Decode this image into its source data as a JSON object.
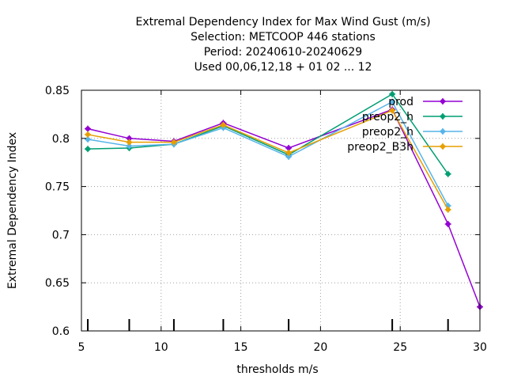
{
  "chart_data": {
    "type": "line",
    "title": [
      "Extremal Dependency Index  for Max Wind Gust (m/s)",
      "Selection: METCOOP    446 stations",
      "Period: 20240610-20240629",
      "Used  00,06,12,18 + 01 02 ... 12"
    ],
    "xlabel": "thresholds m/s",
    "ylabel": "Extremal Dependency Index",
    "xlim": [
      5,
      30
    ],
    "ylim": [
      0.6,
      0.85
    ],
    "xticks": [
      "5",
      "10",
      "15",
      "20",
      "25",
      "30"
    ],
    "yticks": [
      "0.6",
      "0.65",
      "0.7",
      "0.75",
      "0.8",
      "0.85"
    ],
    "grid": true,
    "legend_position": "top-right",
    "threshold_marks": [
      5.4,
      8,
      10.8,
      13.9,
      18,
      24.5,
      28
    ],
    "series": [
      {
        "name": "prod",
        "color": "#9400d3",
        "x": [
          5.4,
          8,
          10.8,
          13.9,
          18,
          24.5,
          28,
          30
        ],
        "y": [
          0.81,
          0.8,
          0.797,
          0.816,
          0.79,
          0.83,
          0.711,
          0.625
        ]
      },
      {
        "name": "preop2_h",
        "color": "#009e73",
        "x": [
          5.4,
          8,
          10.8,
          13.9,
          18,
          24.5,
          28
        ],
        "y": [
          0.789,
          0.79,
          0.794,
          0.813,
          0.783,
          0.846,
          0.763
        ]
      },
      {
        "name": "preop2_h",
        "color": "#56b4e9",
        "x": [
          5.4,
          8,
          10.8,
          13.9,
          18,
          24.5,
          28
        ],
        "y": [
          0.799,
          0.792,
          0.794,
          0.811,
          0.781,
          0.838,
          0.73
        ]
      },
      {
        "name": "preop2_B3h",
        "color": "#e69f00",
        "x": [
          5.4,
          8,
          10.8,
          13.9,
          18,
          24.5,
          28
        ],
        "y": [
          0.804,
          0.796,
          0.796,
          0.814,
          0.785,
          0.829,
          0.726
        ]
      }
    ]
  }
}
